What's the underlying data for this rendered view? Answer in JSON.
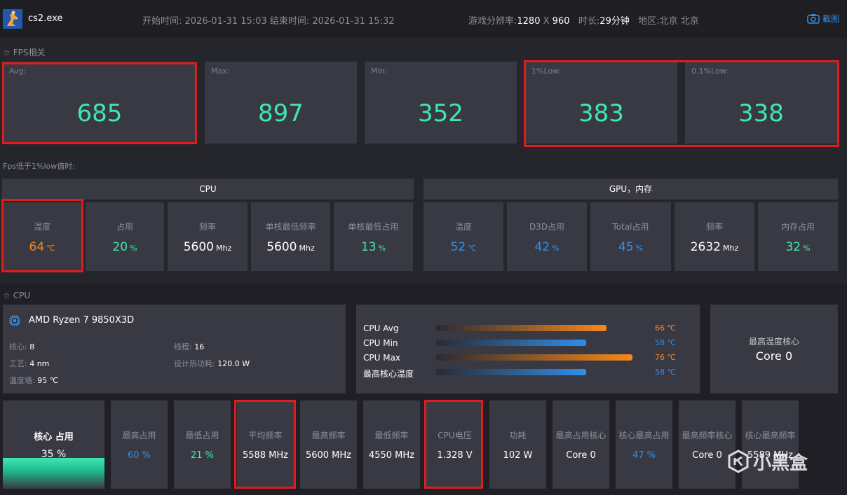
{
  "header": {
    "app_name": "cs2.exe",
    "start_label": "开始时间:",
    "start_time": "2026-01-31 15:03",
    "end_label": "结束时间:",
    "end_time": "2026-01-31 15:32",
    "resolution_label": "游戏分辨率:",
    "res_w": "1280",
    "res_x": "X",
    "res_h": "960",
    "duration_label": "时长:",
    "duration": "29分钟",
    "region_label": "地区:",
    "region": "北京 北京",
    "screenshot_label": "截图"
  },
  "fps": {
    "section_title": "FPS相关",
    "cards": [
      {
        "label": "Avg:",
        "value": "685"
      },
      {
        "label": "Max:",
        "value": "897"
      },
      {
        "label": "Min:",
        "value": "352"
      },
      {
        "label": "1%Low:",
        "value": "383"
      },
      {
        "label": "0.1%Low:",
        "value": "338"
      }
    ],
    "below_low_label": "Fps低于1%low值时:"
  },
  "low_cpu": {
    "header": "CPU",
    "metrics": [
      {
        "label": "温度",
        "value": "64",
        "unit": "℃",
        "color": "#f5891a"
      },
      {
        "label": "占用",
        "value": "20",
        "unit": "%",
        "color": "#3ee8b0"
      },
      {
        "label": "频率",
        "value": "5600",
        "unit": "Mhz",
        "color": "#ffffff"
      },
      {
        "label": "单核最低频率",
        "value": "5600",
        "unit": "Mhz",
        "color": "#ffffff"
      },
      {
        "label": "单核最低占用",
        "value": "13",
        "unit": "%",
        "color": "#3ee8b0"
      }
    ]
  },
  "low_gpu": {
    "header": "GPU，内存",
    "metrics": [
      {
        "label": "温度",
        "value": "52",
        "unit": "℃",
        "color": "#2f8fe8"
      },
      {
        "label": "D3D占用",
        "value": "42",
        "unit": "%",
        "color": "#2f8fe8"
      },
      {
        "label": "Total占用",
        "value": "45",
        "unit": "%",
        "color": "#2f8fe8"
      },
      {
        "label": "频率",
        "value": "2632",
        "unit": "Mhz",
        "color": "#ffffff"
      },
      {
        "label": "内存占用",
        "value": "32",
        "unit": "%",
        "color": "#3ee8b0"
      }
    ]
  },
  "cpu": {
    "section_title": "CPU",
    "name": "AMD Ryzen 7 9850X3D",
    "cores_label": "核心:",
    "cores": "8",
    "threads_label": "线程:",
    "threads": "16",
    "process_label": "工艺:",
    "process": "4 nm",
    "tdp_label": "设计热功耗:",
    "tdp": "120.0 W",
    "tjmax_label": "温度墙:",
    "tjmax": "95 ℃",
    "temps": [
      {
        "label": "CPU Avg",
        "value": "66 ℃",
        "level": 0.66,
        "color": "orange"
      },
      {
        "label": "CPU Min",
        "value": "58 ℃",
        "level": 0.58,
        "color": "blue"
      },
      {
        "label": "CPU Max",
        "value": "76 ℃",
        "level": 0.76,
        "color": "orange"
      },
      {
        "label": "最高核心温度",
        "value": "58 ℃",
        "level": 0.58,
        "color": "blue"
      }
    ],
    "hottest_core_label": "最高温度核心",
    "hottest_core": "Core 0",
    "usage_label": "核心 占用",
    "usage_value": "35 %",
    "usage_fraction": 0.35,
    "stats": [
      {
        "label": "最高占用",
        "value": "60 %",
        "color": "#2f8fe8"
      },
      {
        "label": "最低占用",
        "value": "21 %",
        "color": "#3ee8b0"
      },
      {
        "label": "平均频率",
        "value": "5588 MHz",
        "color": "#ffffff"
      },
      {
        "label": "最高频率",
        "value": "5600 MHz",
        "color": "#ffffff"
      },
      {
        "label": "最低频率",
        "value": "4550 MHz",
        "color": "#ffffff"
      },
      {
        "label": "CPU电压",
        "value": "1.328 V",
        "color": "#ffffff"
      },
      {
        "label": "功耗",
        "value": "102 W",
        "color": "#ffffff"
      },
      {
        "label": "最高占用核心",
        "value": "Core 0",
        "color": "#ffffff"
      },
      {
        "label": "核心最高占用",
        "value": "47 %",
        "color": "#2f8fe8"
      },
      {
        "label": "最高频率核心",
        "value": "Core 0",
        "color": "#ffffff"
      },
      {
        "label": "核心最高频率",
        "value": "5589 MHz",
        "color": "#ffffff"
      }
    ]
  },
  "watermark": "小黑盒"
}
